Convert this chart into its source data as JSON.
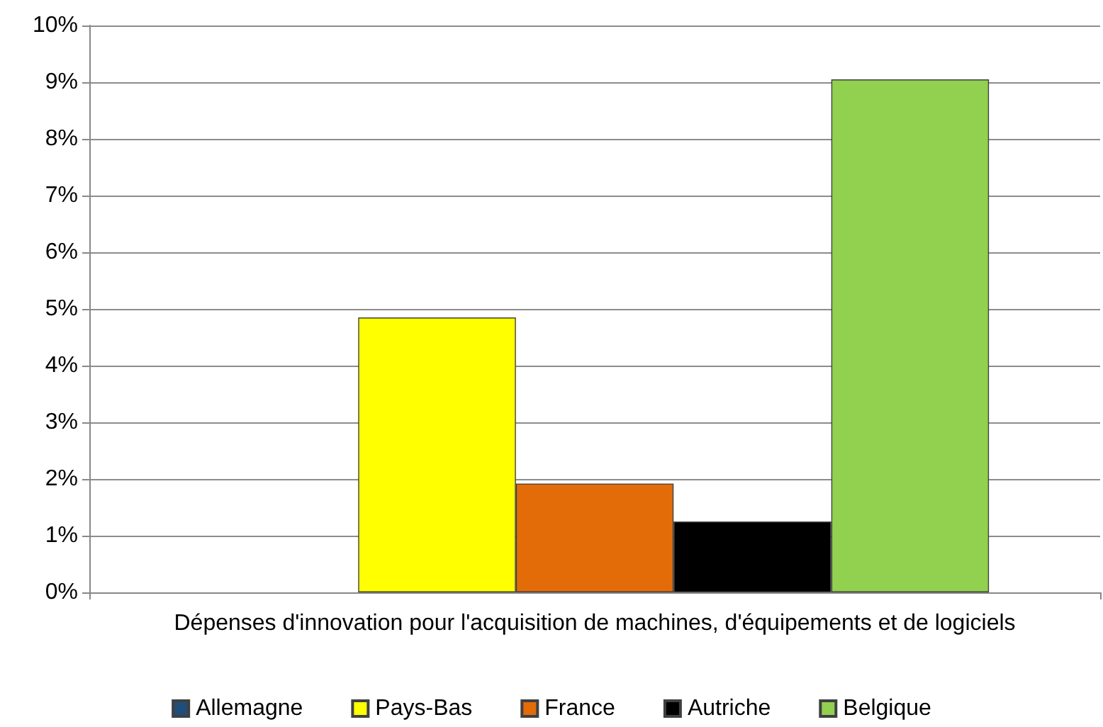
{
  "chart_data": {
    "type": "bar",
    "categories": [
      "Dépenses d'innovation pour l'acquisition de machines, d'équipements et de logiciels"
    ],
    "series": [
      {
        "name": "Allemagne",
        "color": "#1f4e79",
        "values": [
          null
        ]
      },
      {
        "name": "Pays-Bas",
        "color": "#ffff00",
        "values": [
          4.85
        ]
      },
      {
        "name": "France",
        "color": "#e36c09",
        "values": [
          1.92
        ]
      },
      {
        "name": "Autriche",
        "color": "#000000",
        "values": [
          1.25
        ]
      },
      {
        "name": "Belgique",
        "color": "#92d050",
        "values": [
          9.05
        ]
      }
    ],
    "ylim": [
      0,
      10
    ],
    "yticks": [
      {
        "value": 0,
        "label": "0%"
      },
      {
        "value": 1,
        "label": "1%"
      },
      {
        "value": 2,
        "label": "2%"
      },
      {
        "value": 3,
        "label": "3%"
      },
      {
        "value": 4,
        "label": "4%"
      },
      {
        "value": 5,
        "label": "5%"
      },
      {
        "value": 6,
        "label": "6%"
      },
      {
        "value": 7,
        "label": "7%"
      },
      {
        "value": 8,
        "label": "8%"
      },
      {
        "value": 9,
        "label": "9%"
      },
      {
        "value": 10,
        "label": "10%"
      }
    ],
    "grid": "y",
    "legend": "bottom"
  }
}
